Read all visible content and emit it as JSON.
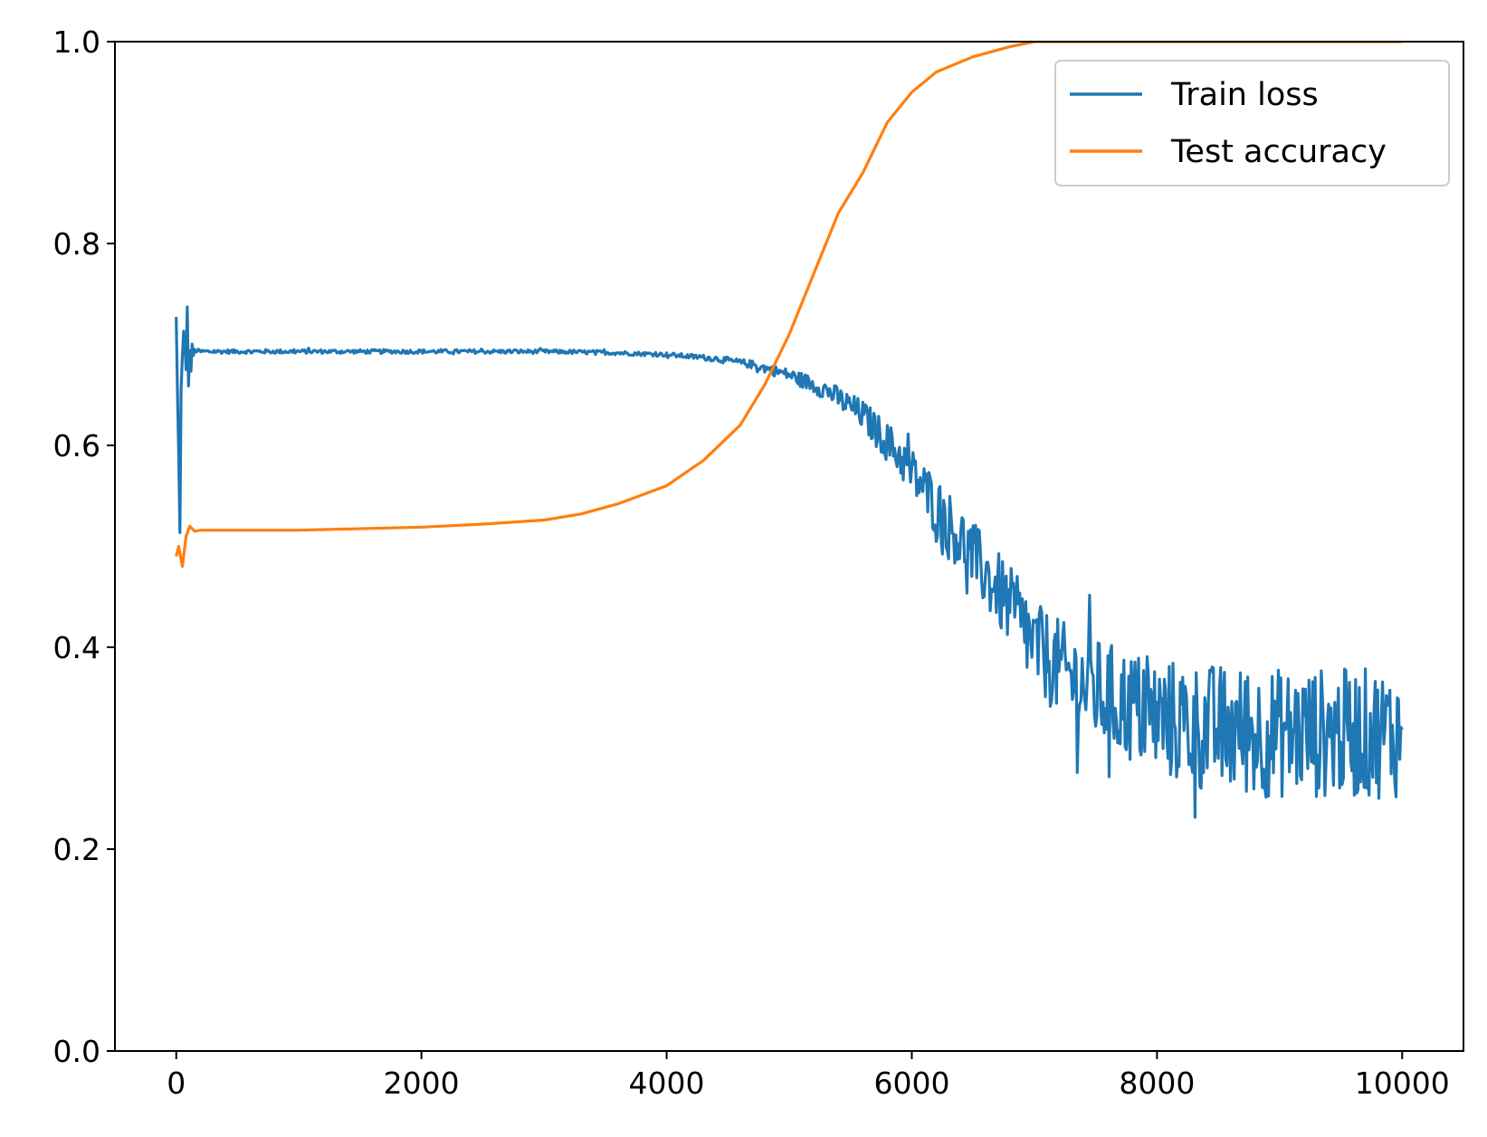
{
  "chart_data": {
    "type": "line",
    "title": "",
    "xlabel": "",
    "ylabel": "",
    "xlim": [
      -500,
      10500
    ],
    "ylim": [
      0.0,
      1.0
    ],
    "grid": false,
    "legend_position": "top-right",
    "x_ticks": [
      0,
      2000,
      4000,
      6000,
      8000,
      10000
    ],
    "x_tick_labels": [
      "0",
      "2000",
      "4000",
      "6000",
      "8000",
      "10000"
    ],
    "y_ticks": [
      0.0,
      0.2,
      0.4,
      0.6,
      0.8,
      1.0
    ],
    "y_tick_labels": [
      "0.0",
      "0.2",
      "0.4",
      "0.6",
      "0.8",
      "1.0"
    ],
    "series": [
      {
        "name": "Train loss",
        "color": "#1f77b4",
        "noisy": true,
        "x": [
          0,
          20,
          50,
          80,
          110,
          150,
          200,
          1000,
          2000,
          3000,
          3500,
          4000,
          4400,
          4700,
          5000,
          5300,
          5600,
          5900,
          6200,
          6500,
          6800,
          7000,
          7300,
          7600,
          8000,
          8400,
          8800,
          9200,
          9600,
          10000
        ],
        "y": [
          0.69,
          0.55,
          0.65,
          0.71,
          0.68,
          0.694,
          0.693,
          0.693,
          0.693,
          0.693,
          0.692,
          0.69,
          0.686,
          0.68,
          0.67,
          0.655,
          0.63,
          0.59,
          0.54,
          0.49,
          0.44,
          0.4,
          0.37,
          0.35,
          0.33,
          0.32,
          0.315,
          0.315,
          0.315,
          0.315
        ],
        "noise_amplitude": [
          0.12,
          0.12,
          0.08,
          0.06,
          0.03,
          0.002,
          0.002,
          0.002,
          0.002,
          0.002,
          0.002,
          0.002,
          0.003,
          0.004,
          0.006,
          0.01,
          0.015,
          0.022,
          0.03,
          0.035,
          0.04,
          0.045,
          0.05,
          0.055,
          0.06,
          0.065,
          0.065,
          0.065,
          0.065,
          0.065
        ]
      },
      {
        "name": "Test accuracy",
        "color": "#ff7f0e",
        "noisy": false,
        "x": [
          0,
          20,
          50,
          80,
          110,
          150,
          200,
          1000,
          2000,
          2500,
          3000,
          3300,
          3600,
          4000,
          4300,
          4600,
          4800,
          5000,
          5200,
          5400,
          5600,
          5800,
          6000,
          6200,
          6500,
          6800,
          7000,
          10000
        ],
        "y": [
          0.49,
          0.5,
          0.48,
          0.51,
          0.52,
          0.515,
          0.516,
          0.516,
          0.519,
          0.522,
          0.526,
          0.532,
          0.542,
          0.56,
          0.585,
          0.62,
          0.66,
          0.71,
          0.77,
          0.83,
          0.87,
          0.92,
          0.95,
          0.97,
          0.985,
          0.995,
          1.0,
          1.0
        ]
      }
    ]
  }
}
